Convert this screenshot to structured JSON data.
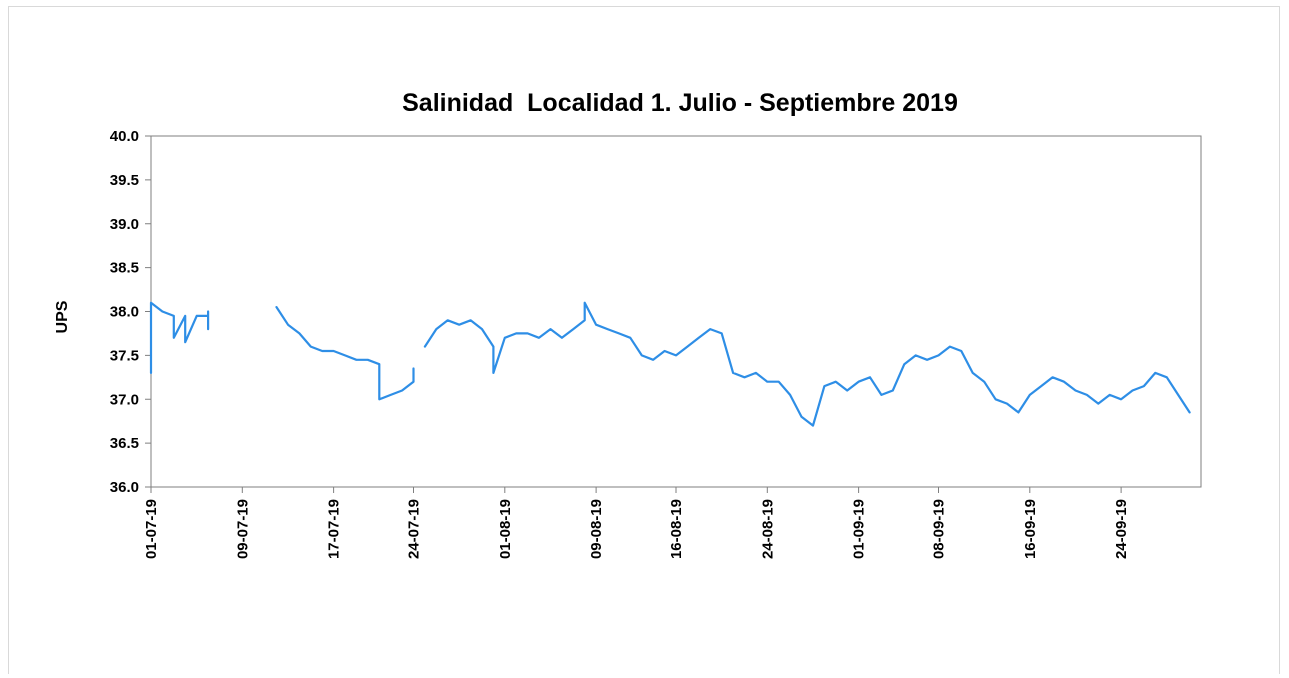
{
  "chart_data": {
    "type": "line",
    "title": "Salinidad  Localidad 1. Julio - Septiembre 2019",
    "xlabel": "",
    "ylabel": "UPS",
    "ylim": [
      36.0,
      40.0
    ],
    "y_ticks": [
      "36.0",
      "36.5",
      "37.0",
      "37.5",
      "38.0",
      "38.5",
      "39.0",
      "39.5",
      "40.0"
    ],
    "x_range": [
      "2019-07-01",
      "2019-09-30"
    ],
    "x_ticks": [
      {
        "date": "2019-07-01",
        "label": "01-07-19"
      },
      {
        "date": "2019-07-09",
        "label": "09-07-19"
      },
      {
        "date": "2019-07-17",
        "label": "17-07-19"
      },
      {
        "date": "2019-07-24",
        "label": "24-07-19"
      },
      {
        "date": "2019-08-01",
        "label": "01-08-19"
      },
      {
        "date": "2019-08-09",
        "label": "09-08-19"
      },
      {
        "date": "2019-08-16",
        "label": "16-08-19"
      },
      {
        "date": "2019-08-24",
        "label": "24-08-19"
      },
      {
        "date": "2019-09-01",
        "label": "01-09-19"
      },
      {
        "date": "2019-09-08",
        "label": "08-09-19"
      },
      {
        "date": "2019-09-16",
        "label": "16-09-19"
      },
      {
        "date": "2019-09-24",
        "label": "24-09-19"
      }
    ],
    "grid": false,
    "line_color": "#2e8ee6",
    "segments": [
      [
        [
          "2019-07-01",
          37.3
        ],
        [
          "2019-07-01",
          37.75
        ],
        [
          "2019-07-01",
          38.1
        ],
        [
          "2019-07-02",
          38.0
        ],
        [
          "2019-07-03",
          37.95
        ],
        [
          "2019-07-03",
          37.7
        ],
        [
          "2019-07-04",
          37.95
        ],
        [
          "2019-07-04",
          37.65
        ],
        [
          "2019-07-05",
          37.95
        ],
        [
          "2019-07-06",
          37.95
        ],
        [
          "2019-07-06",
          37.8
        ],
        [
          "2019-07-06",
          38.0
        ]
      ],
      [
        [
          "2019-07-12",
          38.05
        ],
        [
          "2019-07-13",
          37.85
        ],
        [
          "2019-07-14",
          37.75
        ],
        [
          "2019-07-15",
          37.6
        ],
        [
          "2019-07-16",
          37.55
        ],
        [
          "2019-07-17",
          37.55
        ],
        [
          "2019-07-18",
          37.5
        ],
        [
          "2019-07-19",
          37.45
        ],
        [
          "2019-07-20",
          37.45
        ],
        [
          "2019-07-21",
          37.4
        ],
        [
          "2019-07-21",
          37.0
        ],
        [
          "2019-07-22",
          37.05
        ],
        [
          "2019-07-23",
          37.1
        ],
        [
          "2019-07-24",
          37.2
        ],
        [
          "2019-07-24",
          37.35
        ]
      ],
      [
        [
          "2019-07-25",
          37.6
        ],
        [
          "2019-07-26",
          37.8
        ],
        [
          "2019-07-27",
          37.9
        ],
        [
          "2019-07-28",
          37.85
        ],
        [
          "2019-07-29",
          37.9
        ],
        [
          "2019-07-30",
          37.8
        ],
        [
          "2019-07-31",
          37.6
        ],
        [
          "2019-07-31",
          37.3
        ],
        [
          "2019-08-01",
          37.7
        ],
        [
          "2019-08-02",
          37.75
        ],
        [
          "2019-08-03",
          37.75
        ],
        [
          "2019-08-04",
          37.7
        ],
        [
          "2019-08-05",
          37.8
        ],
        [
          "2019-08-06",
          37.7
        ],
        [
          "2019-08-07",
          37.8
        ],
        [
          "2019-08-08",
          37.9
        ],
        [
          "2019-08-08",
          38.1
        ],
        [
          "2019-08-09",
          37.85
        ],
        [
          "2019-08-10",
          37.8
        ],
        [
          "2019-08-11",
          37.75
        ],
        [
          "2019-08-12",
          37.7
        ],
        [
          "2019-08-13",
          37.5
        ],
        [
          "2019-08-14",
          37.45
        ],
        [
          "2019-08-15",
          37.55
        ],
        [
          "2019-08-16",
          37.5
        ],
        [
          "2019-08-17",
          37.6
        ],
        [
          "2019-08-18",
          37.7
        ],
        [
          "2019-08-19",
          37.8
        ],
        [
          "2019-08-20",
          37.75
        ],
        [
          "2019-08-21",
          37.3
        ],
        [
          "2019-08-22",
          37.25
        ],
        [
          "2019-08-23",
          37.3
        ],
        [
          "2019-08-24",
          37.2
        ],
        [
          "2019-08-25",
          37.2
        ],
        [
          "2019-08-26",
          37.05
        ],
        [
          "2019-08-27",
          36.8
        ],
        [
          "2019-08-28",
          36.7
        ],
        [
          "2019-08-29",
          37.15
        ],
        [
          "2019-08-30",
          37.2
        ],
        [
          "2019-08-31",
          37.1
        ],
        [
          "2019-09-01",
          37.2
        ],
        [
          "2019-09-02",
          37.25
        ],
        [
          "2019-09-03",
          37.05
        ],
        [
          "2019-09-04",
          37.1
        ],
        [
          "2019-09-05",
          37.4
        ],
        [
          "2019-09-06",
          37.5
        ],
        [
          "2019-09-07",
          37.45
        ],
        [
          "2019-09-08",
          37.5
        ],
        [
          "2019-09-09",
          37.6
        ],
        [
          "2019-09-10",
          37.55
        ],
        [
          "2019-09-11",
          37.3
        ],
        [
          "2019-09-12",
          37.2
        ],
        [
          "2019-09-13",
          37.0
        ],
        [
          "2019-09-14",
          36.95
        ],
        [
          "2019-09-15",
          36.85
        ],
        [
          "2019-09-16",
          37.05
        ],
        [
          "2019-09-17",
          37.15
        ],
        [
          "2019-09-18",
          37.25
        ],
        [
          "2019-09-19",
          37.2
        ],
        [
          "2019-09-20",
          37.1
        ],
        [
          "2019-09-21",
          37.05
        ],
        [
          "2019-09-22",
          36.95
        ],
        [
          "2019-09-23",
          37.05
        ],
        [
          "2019-09-24",
          37.0
        ],
        [
          "2019-09-25",
          37.1
        ],
        [
          "2019-09-26",
          37.15
        ],
        [
          "2019-09-27",
          37.3
        ],
        [
          "2019-09-28",
          37.25
        ],
        [
          "2019-09-29",
          37.05
        ],
        [
          "2019-09-30",
          36.85
        ]
      ]
    ]
  }
}
